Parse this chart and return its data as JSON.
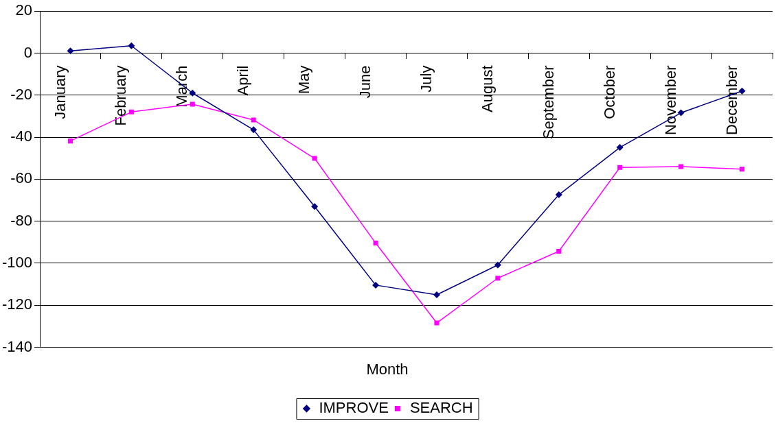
{
  "chart_data": {
    "type": "line",
    "xlabel": "Month",
    "categories": [
      "January",
      "February",
      "March",
      "April",
      "May",
      "June",
      "July",
      "August",
      "September",
      "October",
      "November",
      "December"
    ],
    "series": [
      {
        "name": "IMPROVE",
        "color": "#000080",
        "marker": "diamond",
        "values": [
          1.1,
          3.5,
          -19,
          -36.5,
          -73,
          -110.4,
          -115,
          -100.8,
          -67.4,
          -44.9,
          -28.4,
          -18
        ]
      },
      {
        "name": "SEARCH",
        "color": "#ff00ff",
        "marker": "square",
        "values": [
          -41.8,
          -28,
          -24.3,
          -31.8,
          -50.1,
          -90.4,
          -128.4,
          -107.1,
          -94.3,
          -54.4,
          -54,
          -55.2
        ]
      }
    ],
    "ylim": [
      -140,
      20
    ],
    "yticks": [
      -140,
      -120,
      -100,
      -80,
      -60,
      -40,
      -20,
      0,
      20
    ],
    "grid": "y",
    "legend": "bottom",
    "line_style": "solid"
  }
}
